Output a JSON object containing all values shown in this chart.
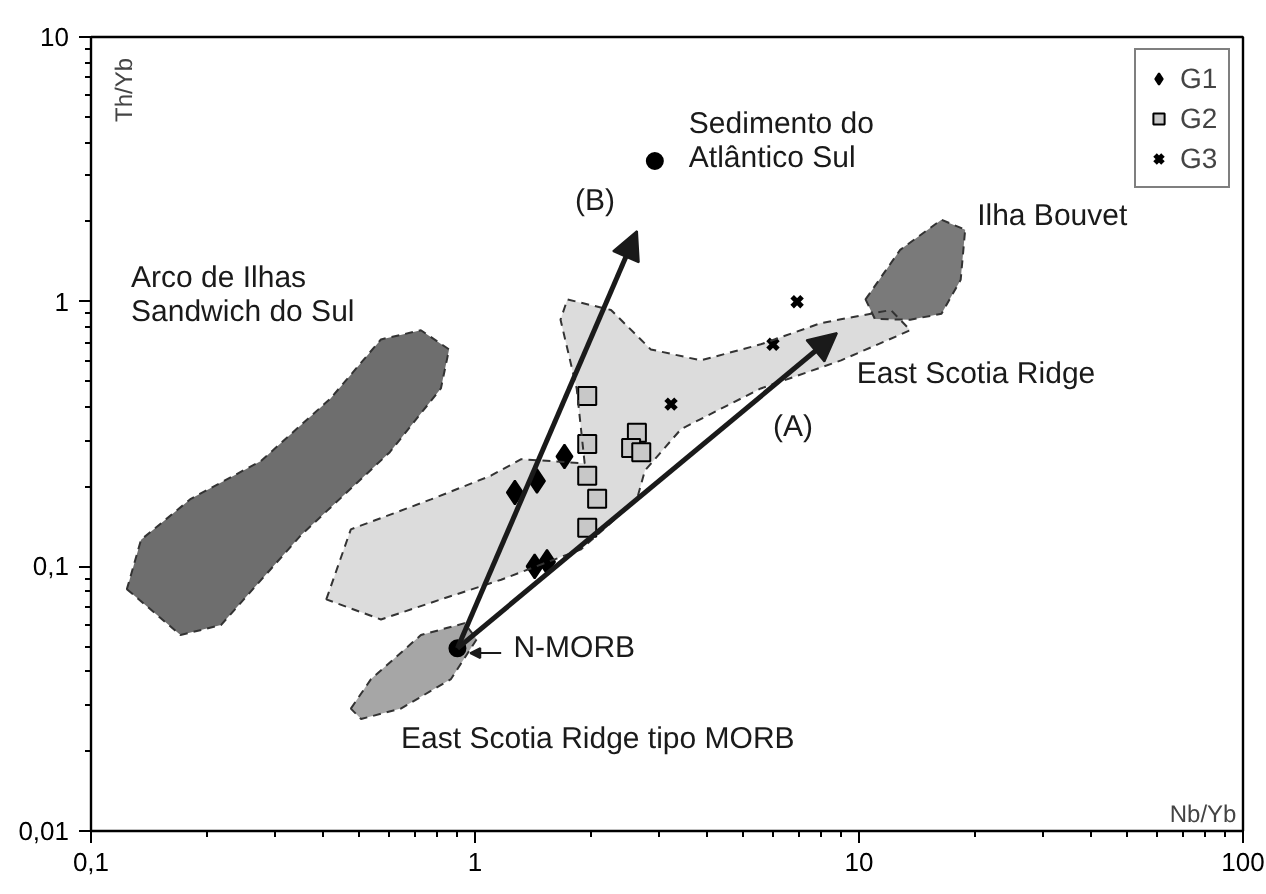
{
  "chart_data": {
    "type": "scatter",
    "xlabel": "Nb/Yb",
    "ylabel": "Th/Yb",
    "log": "xy",
    "grid": false,
    "legend": "top right",
    "xlim": [
      0.1,
      100
    ],
    "ylim": [
      0.01,
      10
    ],
    "xticks": [
      {
        "value": 0.1,
        "label": "0,1"
      },
      1,
      10,
      100
    ],
    "yticks": [
      {
        "value": 0.01,
        "label": "0,01"
      },
      {
        "value": 0.1,
        "label": "0,1"
      },
      1,
      10
    ],
    "series": [
      {
        "type": "area",
        "color": "#6e6e6e",
        "x": [
          0.124,
          0.171,
          0.218,
          0.352,
          0.6,
          0.815,
          0.856,
          0.723,
          0.569,
          0.42,
          0.277,
          0.182,
          0.135
        ],
        "values": [
          0.082,
          0.055,
          0.06,
          0.131,
          0.27,
          0.47,
          0.66,
          0.78,
          0.72,
          0.43,
          0.25,
          0.18,
          0.126
        ]
      },
      {
        "type": "area",
        "name": "East Scotia Ridge",
        "color": "#dcdcdc",
        "x": [
          0.41,
          0.475,
          0.768,
          1.1,
          1.32,
          1.93,
          1.84,
          1.67,
          1.74,
          2.26,
          2.87,
          3.87,
          5.55,
          7.96,
          12.1,
          13.6,
          8.98,
          5.55,
          3.44,
          2.77,
          2.64,
          1.89,
          1.17,
          0.815,
          0.569
        ],
        "values": [
          0.075,
          0.138,
          0.179,
          0.22,
          0.254,
          0.245,
          0.47,
          0.855,
          1.02,
          0.93,
          0.66,
          0.6,
          0.69,
          0.83,
          0.93,
          0.78,
          0.6,
          0.47,
          0.33,
          0.23,
          0.179,
          0.116,
          0.089,
          0.075,
          0.063
        ]
      },
      {
        "type": "area",
        "name": "East Scotia Ridge tipo MORB",
        "color": "#a6a6a6",
        "x": [
          0.475,
          0.536,
          0.723,
          0.94,
          1.01,
          0.866,
          0.641,
          0.505
        ],
        "values": [
          0.029,
          0.0375,
          0.055,
          0.061,
          0.053,
          0.0375,
          0.029,
          0.0265
        ]
      },
      {
        "type": "area",
        "name": "Ilha Bouvet",
        "color": "#7a7a7a",
        "x": [
          10.4,
          12.8,
          16.4,
          18.9,
          18.4,
          16.4,
          13.6,
          11.0
        ],
        "values": [
          1.02,
          1.57,
          2.04,
          1.87,
          1.21,
          0.9,
          0.855,
          0.86
        ]
      },
      {
        "type": "scatter",
        "name": "N-MORB",
        "marker": "circle",
        "color": "#000000",
        "x": [
          0.9
        ],
        "values": [
          0.049
        ]
      },
      {
        "type": "scatter",
        "name": "Sedimento do\nAtlântico Sul",
        "marker": "circle",
        "color": "#000000",
        "x": [
          2.94
        ],
        "values": [
          3.4
        ]
      },
      {
        "name": "G1",
        "marker": "diamond",
        "color": "#000000",
        "x": [
          1.27,
          1.45,
          1.71,
          1.43,
          1.54
        ],
        "values": [
          0.19,
          0.21,
          0.26,
          0.1,
          0.104
        ]
      },
      {
        "name": "G2",
        "marker": "square",
        "color": "#c8c8c8",
        "x": [
          1.96,
          1.96,
          1.96,
          2.08,
          1.96,
          2.64,
          2.55,
          2.71
        ],
        "values": [
          0.44,
          0.29,
          0.22,
          0.18,
          0.14,
          0.32,
          0.28,
          0.27
        ]
      },
      {
        "name": "G3",
        "marker": "cross",
        "color": "#000000",
        "x": [
          3.24,
          5.97,
          6.9
        ],
        "values": [
          0.41,
          0.69,
          1.0
        ]
      }
    ],
    "annotations": [
      "Arco de Ilhas\nSandwich do Sul",
      "(B)",
      "(A)"
    ]
  }
}
